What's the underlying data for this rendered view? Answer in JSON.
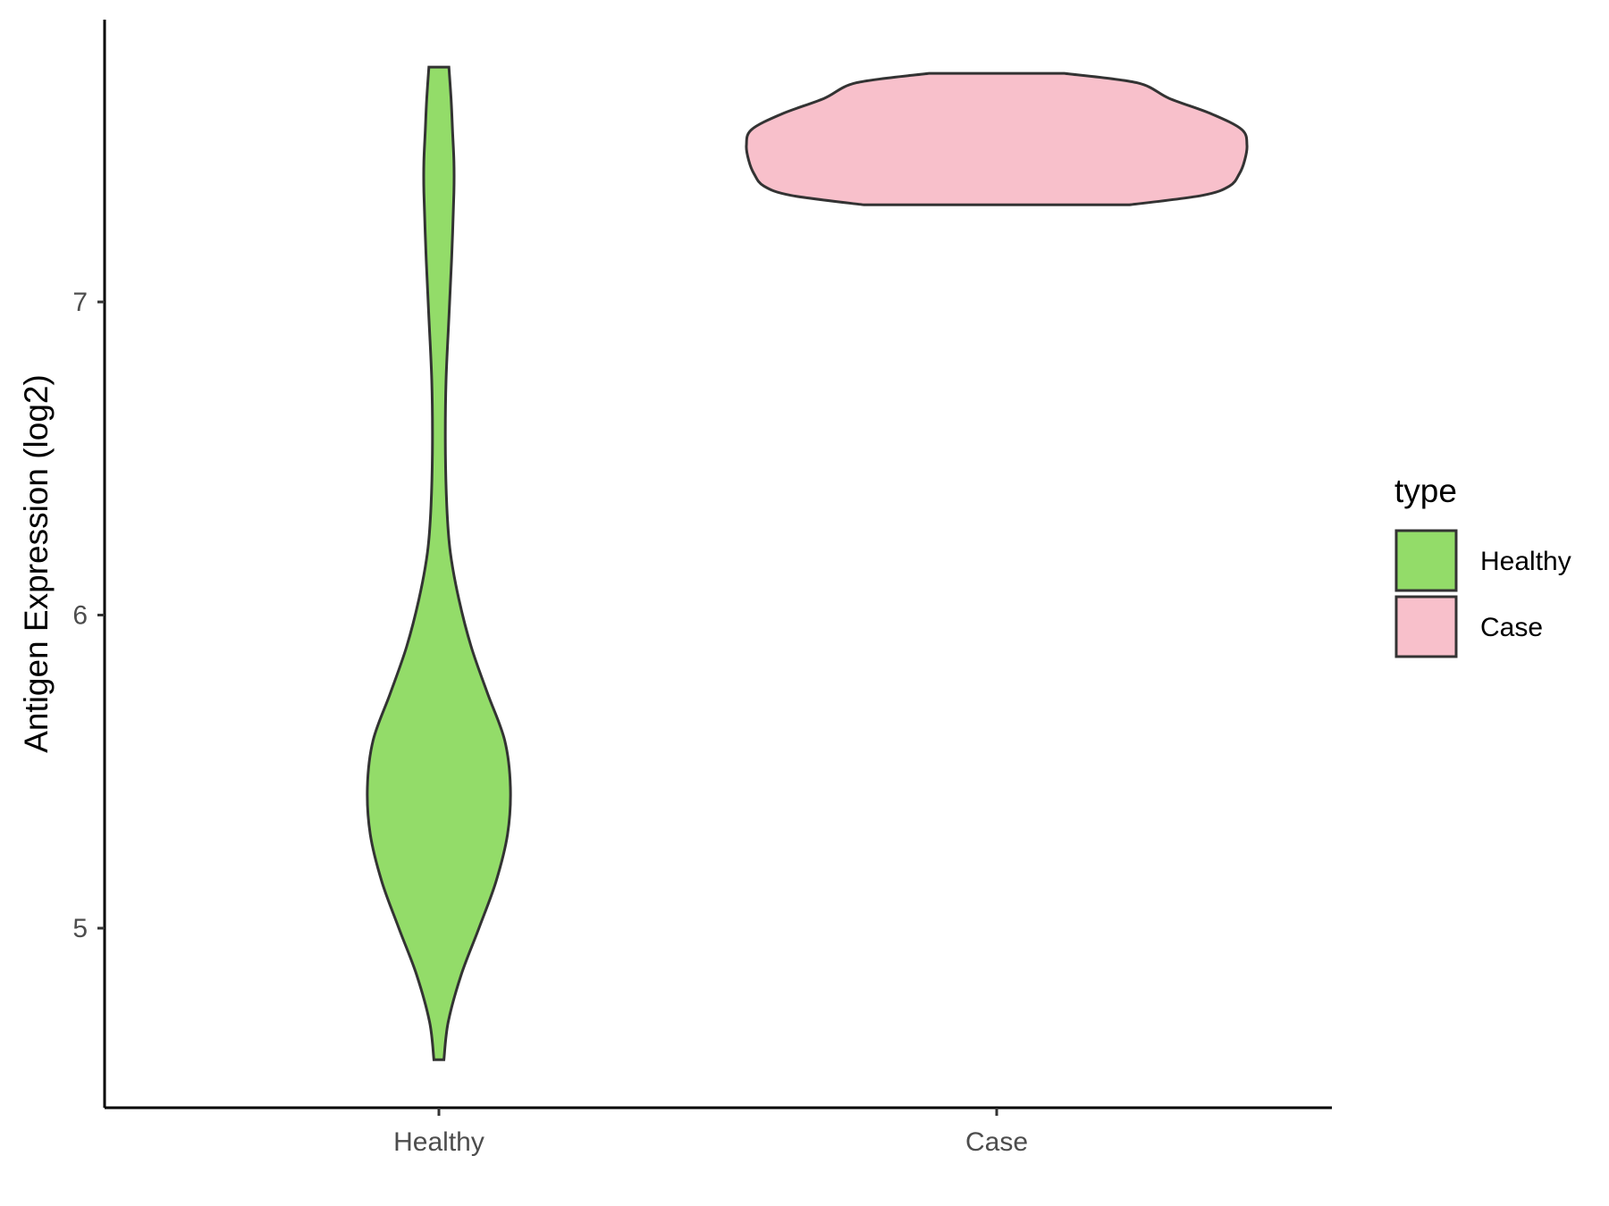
{
  "chart_data": {
    "type": "violin",
    "xlabel": "",
    "ylabel": "Antigen Expression (log2)",
    "ylim": [
      4.43,
      7.9
    ],
    "yticks": [
      "5",
      "6",
      "7"
    ],
    "categories": [
      "Healthy",
      "Case"
    ],
    "grid": false,
    "legend": {
      "title": "type",
      "position": "right",
      "entries": [
        {
          "label": "Healthy",
          "color": "#93DC69"
        },
        {
          "label": "Case",
          "color": "#F8C0CB"
        }
      ]
    },
    "series": [
      {
        "name": "Healthy",
        "color": "#93DC69",
        "min": 4.58,
        "max": 7.75,
        "density": [
          [
            4.58,
            0.07
          ],
          [
            4.7,
            0.13
          ],
          [
            4.85,
            0.31
          ],
          [
            5.0,
            0.56
          ],
          [
            5.15,
            0.8
          ],
          [
            5.3,
            0.96
          ],
          [
            5.45,
            1.0
          ],
          [
            5.6,
            0.92
          ],
          [
            5.75,
            0.68
          ],
          [
            5.9,
            0.45
          ],
          [
            6.05,
            0.28
          ],
          [
            6.2,
            0.16
          ],
          [
            6.35,
            0.11
          ],
          [
            6.55,
            0.09
          ],
          [
            6.75,
            0.1
          ],
          [
            6.95,
            0.14
          ],
          [
            7.15,
            0.18
          ],
          [
            7.35,
            0.21
          ],
          [
            7.45,
            0.21
          ],
          [
            7.55,
            0.19
          ],
          [
            7.65,
            0.17
          ],
          [
            7.75,
            0.14
          ]
        ]
      },
      {
        "name": "Case",
        "color": "#F8C0CB",
        "min": 7.31,
        "max": 7.73,
        "density": [
          [
            7.31,
            0.53
          ],
          [
            7.34,
            0.82
          ],
          [
            7.37,
            0.93
          ],
          [
            7.41,
            0.97
          ],
          [
            7.45,
            0.99
          ],
          [
            7.5,
            1.0
          ],
          [
            7.55,
            0.98
          ],
          [
            7.6,
            0.86
          ],
          [
            7.65,
            0.69
          ],
          [
            7.7,
            0.56
          ],
          [
            7.73,
            0.27
          ]
        ]
      }
    ]
  }
}
